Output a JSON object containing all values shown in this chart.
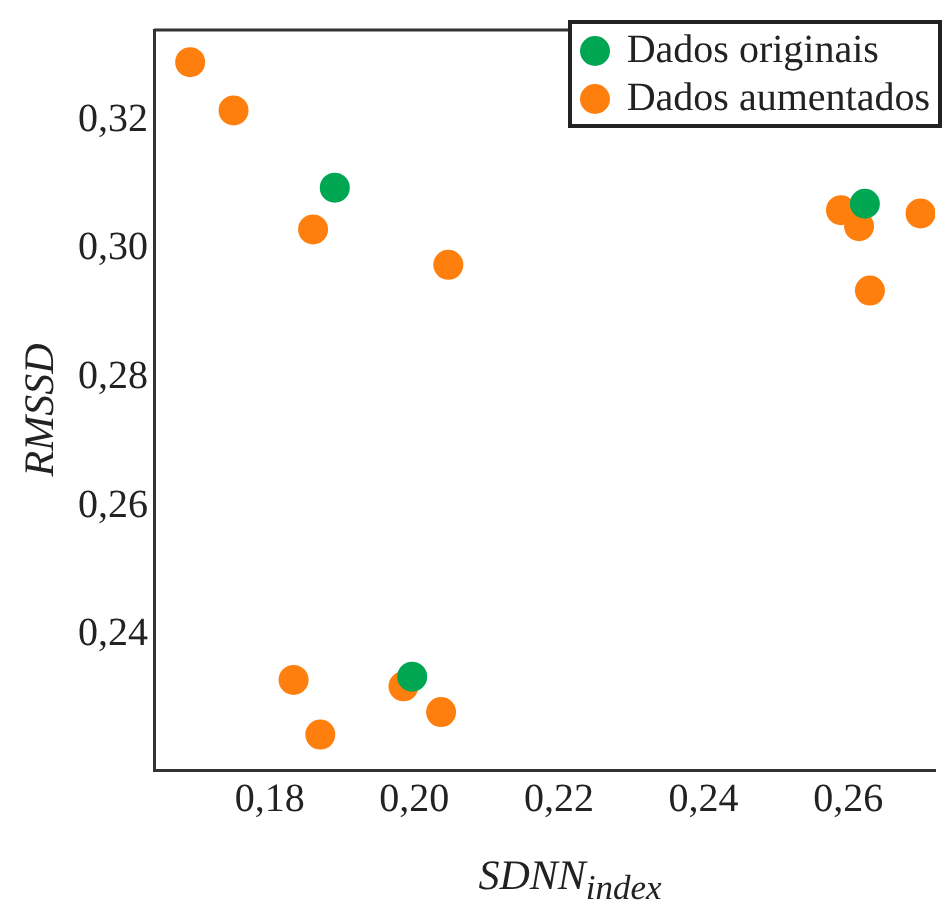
{
  "chart_data": {
    "type": "scatter",
    "xlabel": "SDNN$_{index}$",
    "ylabel": "RMSSD",
    "xlim": [
      0.164,
      0.272
    ],
    "xticks": [
      {
        "value": 0.18,
        "label": "0,18"
      },
      {
        "value": 0.2,
        "label": "0,20"
      },
      {
        "value": 0.22,
        "label": "0,22"
      },
      {
        "value": 0.24,
        "label": "0,24"
      },
      {
        "value": 0.26,
        "label": "0,26"
      }
    ],
    "ylim": [
      0.219,
      0.334
    ],
    "yticks": [
      {
        "value": 0.24,
        "label": "0,24"
      },
      {
        "value": 0.26,
        "label": "0,26"
      },
      {
        "value": 0.28,
        "label": "0,28"
      },
      {
        "value": 0.3,
        "label": "0,30"
      },
      {
        "value": 0.32,
        "label": "0,32"
      }
    ],
    "grid": false,
    "legend": "top right",
    "marker": "circle",
    "series": [
      {
        "name": "Dados originais",
        "color": "#00a651",
        "x": [
          0.189,
          0.2623,
          0.1997
        ],
        "values": [
          0.3095,
          0.307,
          0.2335
        ]
      },
      {
        "name": "Dados aumentados",
        "color": "#ff7f0e",
        "x": [
          0.169,
          0.175,
          0.186,
          0.2047,
          0.259,
          0.2615,
          0.263,
          0.27,
          0.1833,
          0.187,
          0.1985,
          0.2037
        ],
        "values": [
          0.329,
          0.3215,
          0.303,
          0.2975,
          0.306,
          0.3035,
          0.2935,
          0.3055,
          0.233,
          0.2245,
          0.232,
          0.228
        ]
      }
    ]
  }
}
